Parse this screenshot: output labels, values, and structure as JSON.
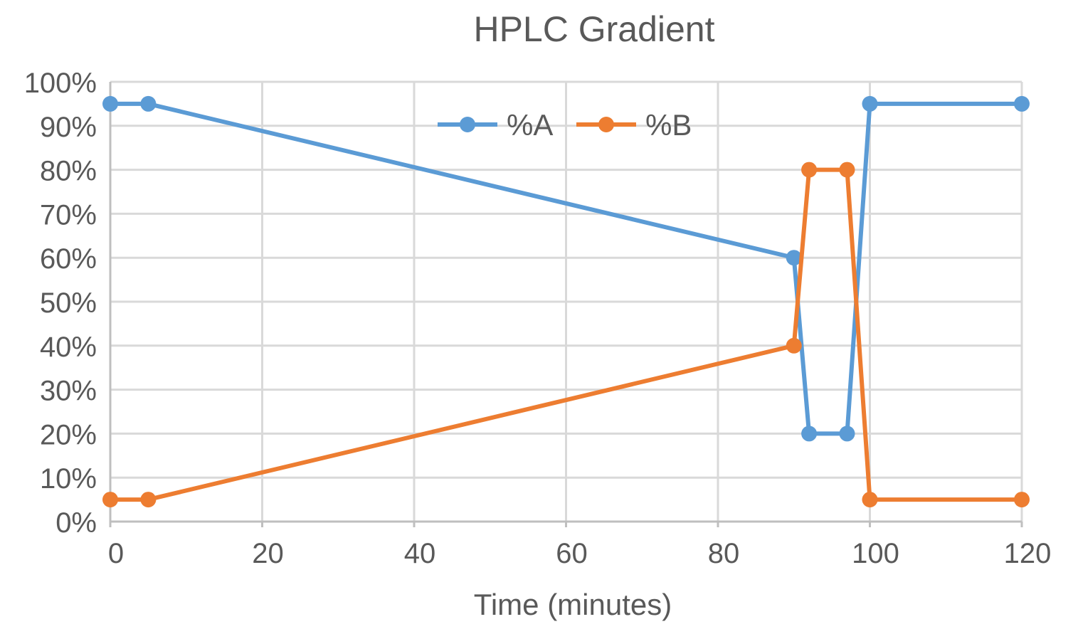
{
  "chart_data": {
    "type": "line",
    "title": "HPLC Gradient",
    "xlabel": "Time (minutes)",
    "ylabel": "",
    "xlim": [
      0,
      120
    ],
    "ylim": [
      0,
      100
    ],
    "x_ticks": [
      0,
      20,
      40,
      60,
      80,
      100,
      120
    ],
    "y_ticks": [
      0,
      10,
      20,
      30,
      40,
      50,
      60,
      70,
      80,
      90,
      100
    ],
    "y_tick_format": "percent",
    "grid": true,
    "legend_position": "top-center",
    "series": [
      {
        "name": "%A",
        "color": "#5b9bd5",
        "x": [
          0,
          5,
          90,
          92,
          97,
          100,
          120
        ],
        "y": [
          95,
          95,
          60,
          20,
          20,
          95,
          95
        ]
      },
      {
        "name": "%B",
        "color": "#ed7d31",
        "x": [
          0,
          5,
          90,
          92,
          97,
          100,
          120
        ],
        "y": [
          5,
          5,
          40,
          80,
          80,
          5,
          5
        ]
      }
    ]
  }
}
